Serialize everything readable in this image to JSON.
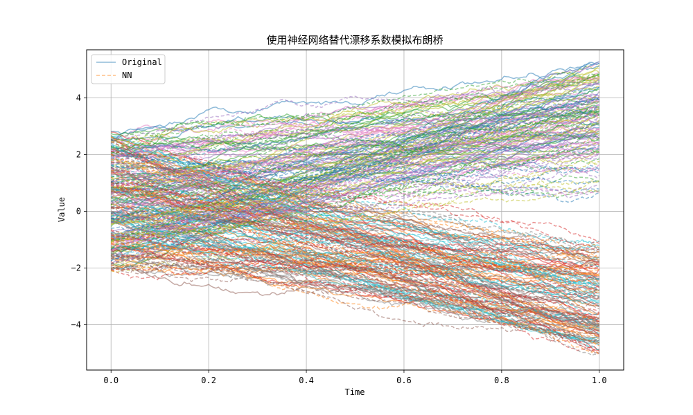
{
  "chart_data": {
    "type": "line",
    "title": "使用神经网络替代漂移系数模拟布朗桥",
    "xlabel": "Time",
    "ylabel": "Value",
    "xlim": [
      -0.05,
      1.05
    ],
    "ylim": [
      -5.6,
      5.7
    ],
    "xticks": [
      "0.0",
      "0.2",
      "0.4",
      "0.6",
      "0.8",
      "1.0"
    ],
    "xtick_values": [
      0.0,
      0.2,
      0.4,
      0.6,
      0.8,
      1.0
    ],
    "yticks": [
      "−4",
      "−2",
      "0",
      "2",
      "4"
    ],
    "ytick_values": [
      -4,
      -2,
      0,
      2,
      4
    ],
    "grid": true,
    "legend_position": "top-left",
    "series": [
      {
        "name": "Original",
        "style": "solid",
        "color": "#1f77b4",
        "start": [
          -2.1,
          2.9
        ],
        "end_clusters": [
          [
            2.0,
            5.3
          ],
          [
            -4.9,
            -1.4
          ]
        ],
        "path_count": 150
      },
      {
        "name": "NN",
        "style": "dashed",
        "color": "#ff7f0e",
        "start": [
          -2.1,
          2.5
        ],
        "end_clusters": [
          [
            0.5,
            4.9
          ],
          [
            -5.1,
            -1.0
          ]
        ],
        "path_count": 150
      }
    ],
    "path_palette": [
      "#1f77b4",
      "#ff7f0e",
      "#2ca02c",
      "#d62728",
      "#9467bd",
      "#8c564b",
      "#e377c2",
      "#7f7f7f",
      "#bcbd22",
      "#17becf"
    ]
  }
}
